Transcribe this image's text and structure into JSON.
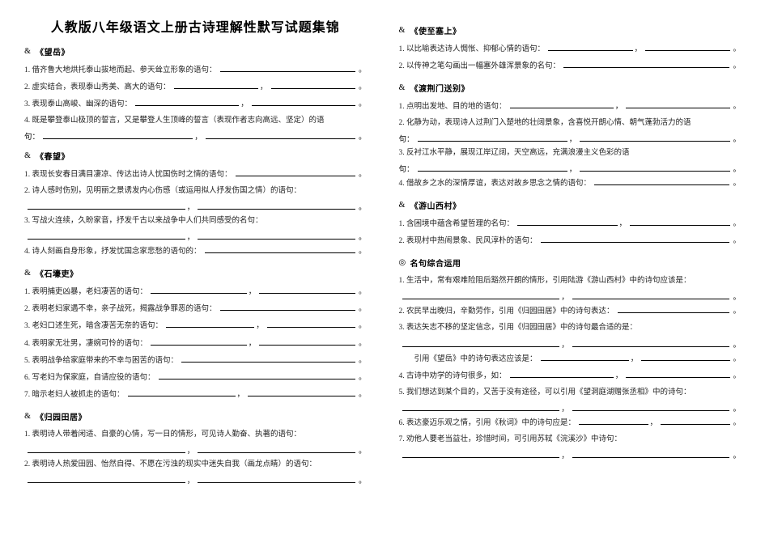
{
  "title": "人教版八年级语文上册古诗理解性默写试题集锦",
  "left": {
    "sections": [
      {
        "marker": "&",
        "title": "《望岳》",
        "questions": [
          {
            "num": "1.",
            "text": "借齐鲁大地烘托泰山拔地而起、参天耸立形象的语句：",
            "blanks": 1,
            "tail": "。"
          },
          {
            "num": "2.",
            "text": "虚实结合，表现泰山秀美、高大的语句：",
            "blanks": 1,
            "cont": "，",
            "blanks2": 1,
            "tail": "。"
          },
          {
            "num": "3.",
            "text": "表现泰山高峻、幽深的语句：",
            "blanks": 1,
            "cont": "，",
            "blanks2": 1,
            "tail": "。"
          },
          {
            "num": "4.",
            "text": "既是攀登泰山极顶的誓言，又是攀登人生顶峰的誓言（表现作者志向高远、坚定）的语",
            "full": true,
            "nextline": "句：",
            "blanks": 1,
            "cont": "，",
            "blanks2": 1,
            "tail": "。"
          }
        ]
      },
      {
        "marker": "&",
        "title": "《春望》",
        "questions": [
          {
            "num": "1.",
            "text": "表现长安春日满目凄凉、传达出诗人忧国伤时之情的语句：",
            "blanks": 1,
            "tail": "。"
          },
          {
            "num": "2.",
            "text": "诗人感时伤别，见明丽之景诱发内心伤感（或运用拟人抒发伤国之情）的语句：",
            "full": true,
            "nextline": "",
            "blanks": 1,
            "cont": "，",
            "blanks2": 1,
            "tail": "。"
          },
          {
            "num": "3.",
            "text": "写战火连续，久盼家音，抒发千古以来战争中人们共同感受的名句：",
            "full": true,
            "nextline": "",
            "blanks": 1,
            "cont": "，",
            "blanks2": 1,
            "tail": "。"
          },
          {
            "num": "4.",
            "text": "诗人刻画自身形象，抒发忧国念家悲愁的语句的：",
            "blanks": 1,
            "tail": "。"
          }
        ]
      },
      {
        "marker": "&",
        "title": "《石壕吏》",
        "questions": [
          {
            "num": "1.",
            "text": "表明捕吏凶暴，老妇凄苦的语句：",
            "blanks": 1,
            "cont": "，",
            "blanks2": 1,
            "tail": "。"
          },
          {
            "num": "2.",
            "text": "表明老妇家遇不幸，亲子战死，揭露战争罪恶的语句：",
            "blanks": 1,
            "tail": "。"
          },
          {
            "num": "3.",
            "text": "老妇口述生死，暗含凄苦无奈的语句：",
            "blanks": 1,
            "cont": "，",
            "blanks2": 1,
            "tail": "。"
          },
          {
            "num": "4.",
            "text": "表明家无壮男，凄婉可怜的语句：",
            "blanks": 1,
            "cont": "，",
            "blanks2": 1,
            "tail": "。"
          },
          {
            "num": "5.",
            "text": "表明战争给家庭带来的不幸与困苦的语句：",
            "blanks": 1,
            "tail": "。"
          },
          {
            "num": "6.",
            "text": "写老妇为保家庭，自请应役的语句：",
            "blanks": 1,
            "tail": "。"
          },
          {
            "num": "7.",
            "text": "暗示老妇人被抓走的语句：",
            "blanks": 1,
            "cont": "，",
            "blanks2": 1,
            "tail": "。"
          }
        ]
      },
      {
        "marker": "&",
        "title": "《归园田居》",
        "questions": [
          {
            "num": "1.",
            "text": "表明诗人带着闲适、自豪的心情，写一日的情形，可见诗人勤奋、执著的语句：",
            "full": true,
            "nextline": "",
            "blanks": 1,
            "cont": "，",
            "blanks2": 1,
            "tail": "。"
          },
          {
            "num": "2.",
            "text": "表明诗人热爱田园、怡然自得、不愿在污浊的现实中迷失自我（画龙点睛）的语句：",
            "full": true,
            "nextline": "",
            "blanks": 1,
            "cont": "，",
            "blanks2": 1,
            "tail": "。"
          }
        ]
      }
    ]
  },
  "right": {
    "sections": [
      {
        "marker": "&",
        "title": "《使至塞上》",
        "questions": [
          {
            "num": "1.",
            "text": "以比喻表达诗人惆怅、抑郁心情的语句：",
            "blanks": 1,
            "cont": "，",
            "blanks2": 1,
            "tail": "。"
          },
          {
            "num": "2.",
            "text": "以传神之笔勾画出一幅塞外雄浑景象的名句：",
            "blanks": 1,
            "tail": "。"
          }
        ]
      },
      {
        "marker": "&",
        "title": "《渡荆门送别》",
        "questions": [
          {
            "num": "1.",
            "text": "点明出发地、目的地的语句：",
            "blanks": 1,
            "cont": "，",
            "blanks2": 1,
            "tail": "。"
          },
          {
            "num": "2.",
            "text": "化静为动，表现诗人过荆门入楚地的壮阔景象，含喜悦开朗心情、朝气蓬勃活力的语",
            "full": true,
            "nextline": "句：",
            "blanks": 1,
            "cont": "，",
            "blanks2": 1,
            "tail": "。"
          },
          {
            "num": "3.",
            "text": "反衬江水平静，展现江岸辽阔，天空高远，充满浪漫主义色彩的语",
            "full": true,
            "nextline": "句：",
            "blanks": 1,
            "cont": "，",
            "blanks2": 1,
            "tail": "。"
          },
          {
            "num": "4.",
            "text": "借故乡之水的深情厚谊，表达对故乡思念之情的语句：",
            "blanks": 1,
            "tail": "。"
          }
        ]
      },
      {
        "marker": "&",
        "title": "《游山西村》",
        "questions": [
          {
            "num": "1.",
            "text": "含困境中蕴含希望哲理的名句：",
            "blanks": 1,
            "cont": "，",
            "blanks2": 1,
            "tail": "。"
          },
          {
            "num": "2.",
            "text": "表现村中热闹景象、民风淳朴的语句：",
            "blanks": 1,
            "tail": "。"
          }
        ]
      },
      {
        "marker": "◎",
        "title": "名句综合运用",
        "questions": [
          {
            "num": "1.",
            "text": "生活中，常有艰难险阻后豁然开朗的情形，引用陆游《游山西村》中的诗句应该是：",
            "full": true,
            "nextline": "",
            "blanks": 1,
            "cont": "，",
            "blanks2": 1,
            "tail": "。"
          },
          {
            "num": "2.",
            "text": "农民早出晚归，辛勤劳作，引用《归园田居》中的诗句表达：",
            "blanks": 1,
            "tail": "。"
          },
          {
            "num": "3.",
            "text": "表达矢志不移的坚定信念，引用《归园田居》中的诗句最合适的是：",
            "full": true,
            "nextline": "",
            "blanks": 1,
            "cont": "，",
            "blanks2": 1,
            "tail": "。"
          },
          {
            "num": "",
            "text": "引用《望岳》中的诗句表达应该是：",
            "pre": true,
            "blanks": 1,
            "cont": "，",
            "blanks2": 1,
            "tail": "。"
          },
          {
            "num": "4.",
            "text": "古诗中劝学的诗句很多，如：",
            "blanks": 1,
            "cont": "，",
            "blanks2": 1,
            "tail": "。"
          },
          {
            "num": "5.",
            "text": "我们想达到某个目的，又苦于没有途径，可以引用《望洞庭湖赠张丞相》中的诗句：",
            "full": true,
            "nextline": "",
            "blanks": 1,
            "cont": "，",
            "blanks2": 1,
            "tail": "。"
          },
          {
            "num": "6.",
            "text": "表达豪迈乐观之情，引用《秋词》中的诗句应是：",
            "blanks": 1,
            "cont": "，",
            "blanks2": 1,
            "tail": "。"
          },
          {
            "num": "7.",
            "text": "劝他人要老当益壮，珍惜时间，可引用苏轼《浣溪沙》中诗句：",
            "full": true,
            "nextline": "",
            "blanks": 1,
            "cont": "，",
            "blanks2": 1,
            "tail": "。"
          }
        ]
      }
    ]
  }
}
